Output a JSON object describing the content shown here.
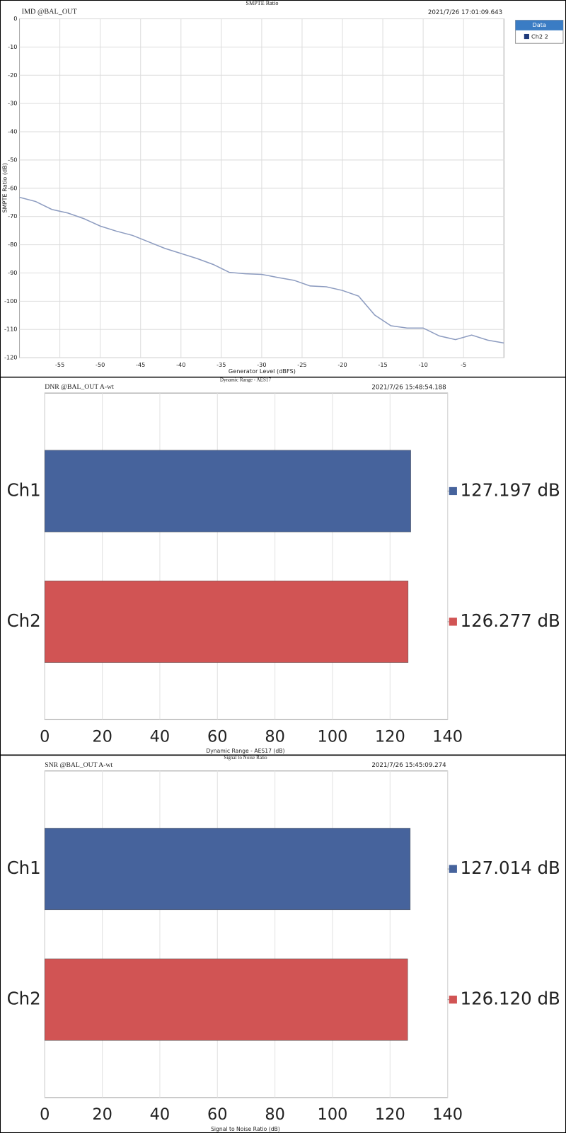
{
  "chart_data": [
    {
      "type": "line",
      "title": "SMPTE Ratio",
      "subtitle": "IMD @BAL_OUT",
      "timestamp": "2021/7/26 17:01:09.643",
      "x_label": "Generator Level (dBFS)",
      "y_label": "SMPTE Ratio (dB)",
      "x": [
        -60,
        -58,
        -56,
        -54,
        -52,
        -50,
        -48,
        -46,
        -44,
        -42,
        -40,
        -38,
        -36,
        -34,
        -32,
        -30,
        -28,
        -26,
        -24,
        -22,
        -20,
        -18,
        -16,
        -14,
        -12,
        -10,
        -8,
        -6,
        -4,
        -2,
        0
      ],
      "series": [
        {
          "name": "Ch2 2",
          "color": "#8d9cc0",
          "values": [
            -63.2,
            -64.7,
            -67.5,
            -68.8,
            -70.8,
            -73.4,
            -75.2,
            -76.7,
            -79,
            -81.3,
            -83.1,
            -84.9,
            -87,
            -89.8,
            -90.3,
            -90.5,
            -91.6,
            -92.6,
            -94.6,
            -94.9,
            -96.2,
            -98.2,
            -104.9,
            -108.7,
            -109.5,
            -109.5,
            -112.3,
            -113.6,
            -112,
            -113.8,
            -114.8
          ]
        }
      ],
      "legend_title": "Data",
      "legend_position": "right",
      "xlim": [
        -60,
        0
      ],
      "xticks": [
        -55,
        -50,
        -45,
        -40,
        -35,
        -30,
        -25,
        -20,
        -15,
        -10,
        -5
      ],
      "ylim": [
        -120,
        0
      ],
      "yticks": [
        0,
        -10,
        -20,
        -30,
        -40,
        -50,
        -60,
        -70,
        -80,
        -90,
        -100,
        -110,
        -120
      ],
      "grid": true
    },
    {
      "type": "bar",
      "orientation": "horizontal",
      "title": "Dynamic Range - AES17",
      "subtitle": "DNR @BAL_OUT A-wt",
      "timestamp": "2021/7/26 15:48:54.188",
      "x_label": "Dynamic Range - AES17 (dB)",
      "categories": [
        "Ch1",
        "Ch2"
      ],
      "values": [
        127.197,
        126.277
      ],
      "value_labels": [
        "127.197 dB",
        "126.277 dB"
      ],
      "colors": [
        "#46639c",
        "#d15454"
      ],
      "xlim": [
        0,
        140
      ],
      "xticks": [
        0,
        20,
        40,
        60,
        80,
        100,
        120,
        140
      ],
      "grid": true
    },
    {
      "type": "bar",
      "orientation": "horizontal",
      "title": "Signal to Noise Ratio",
      "subtitle": "SNR @BAL_OUT A-wt",
      "timestamp": "2021/7/26 15:45:09.274",
      "x_label": "Signal to Noise Ratio (dB)",
      "categories": [
        "Ch1",
        "Ch2"
      ],
      "values": [
        127.014,
        126.12
      ],
      "value_labels": [
        "127.014 dB",
        "126.120 dB"
      ],
      "colors": [
        "#46639c",
        "#d15454"
      ],
      "xlim": [
        0,
        140
      ],
      "xticks": [
        0,
        20,
        40,
        60,
        80,
        100,
        120,
        140
      ],
      "grid": true
    }
  ]
}
